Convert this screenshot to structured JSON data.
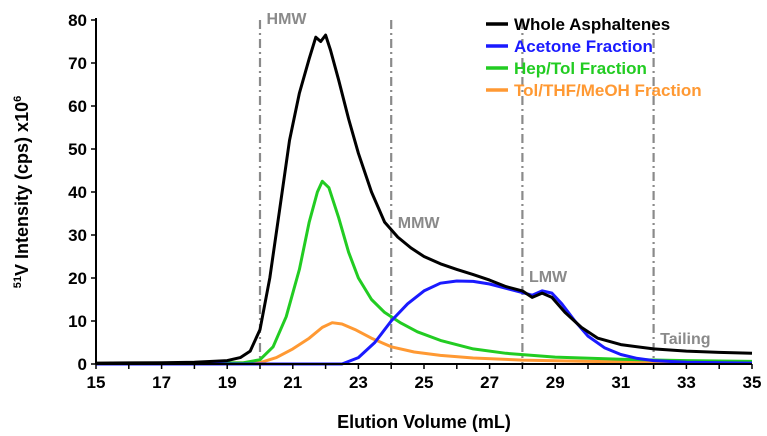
{
  "chart_data": {
    "type": "line",
    "xlabel": "Elution Volume (mL)",
    "ylabel_parts": {
      "sup": "51",
      "rest": "V Intensity (cps) x10",
      "exp": "6"
    },
    "xlim": [
      15,
      35
    ],
    "ylim": [
      0,
      80
    ],
    "xticks": [
      15,
      17,
      19,
      21,
      23,
      25,
      27,
      29,
      31,
      33,
      35
    ],
    "yticks": [
      0,
      10,
      20,
      30,
      40,
      50,
      60,
      70,
      80
    ],
    "grid": false,
    "legend_position": "top-right",
    "region_boundaries": [
      20,
      24,
      28,
      32
    ],
    "region_labels": [
      {
        "text": "HMW",
        "x": 20.2,
        "y": 80.5
      },
      {
        "text": "MMW",
        "x": 24.2,
        "y": 33
      },
      {
        "text": "LMW",
        "x": 28.2,
        "y": 20.5
      },
      {
        "text": "Tailing",
        "x": 32.2,
        "y": 6
      }
    ],
    "series": [
      {
        "name": "Whole Asphaltenes",
        "color": "#000000",
        "points": [
          [
            15,
            0.2
          ],
          [
            17,
            0.3
          ],
          [
            18,
            0.4
          ],
          [
            19,
            0.8
          ],
          [
            19.4,
            1.5
          ],
          [
            19.7,
            3
          ],
          [
            20,
            8
          ],
          [
            20.3,
            20
          ],
          [
            20.6,
            36
          ],
          [
            20.9,
            52
          ],
          [
            21.2,
            63
          ],
          [
            21.5,
            71
          ],
          [
            21.7,
            76
          ],
          [
            21.85,
            75
          ],
          [
            22,
            76.5
          ],
          [
            22.15,
            73
          ],
          [
            22.4,
            66
          ],
          [
            22.7,
            57
          ],
          [
            23,
            49
          ],
          [
            23.4,
            40
          ],
          [
            23.8,
            33
          ],
          [
            24.2,
            29.5
          ],
          [
            24.6,
            27
          ],
          [
            25,
            25
          ],
          [
            25.5,
            23.3
          ],
          [
            26,
            22
          ],
          [
            26.5,
            20.8
          ],
          [
            27,
            19.5
          ],
          [
            27.5,
            18
          ],
          [
            28,
            17
          ],
          [
            28.3,
            15.5
          ],
          [
            28.6,
            16.5
          ],
          [
            28.9,
            15.5
          ],
          [
            29.3,
            12
          ],
          [
            29.8,
            8.5
          ],
          [
            30.3,
            6
          ],
          [
            31,
            4.5
          ],
          [
            32,
            3.5
          ],
          [
            33,
            3
          ],
          [
            34,
            2.7
          ],
          [
            35,
            2.5
          ]
        ]
      },
      {
        "name": "Acetone Fraction",
        "color": "#1a1aff",
        "points": [
          [
            15,
            0
          ],
          [
            22.5,
            0
          ],
          [
            23,
            1.5
          ],
          [
            23.5,
            5
          ],
          [
            24,
            10
          ],
          [
            24.5,
            14
          ],
          [
            25,
            17
          ],
          [
            25.5,
            18.8
          ],
          [
            26,
            19.3
          ],
          [
            26.5,
            19.2
          ],
          [
            27,
            18.6
          ],
          [
            27.5,
            17.6
          ],
          [
            28,
            16.6
          ],
          [
            28.3,
            16
          ],
          [
            28.6,
            17
          ],
          [
            28.9,
            16.5
          ],
          [
            29.2,
            14
          ],
          [
            29.6,
            10
          ],
          [
            30,
            6.5
          ],
          [
            30.5,
            3.8
          ],
          [
            31,
            2.2
          ],
          [
            31.5,
            1.3
          ],
          [
            32,
            0.8
          ],
          [
            33,
            0.4
          ],
          [
            35,
            0.2
          ]
        ]
      },
      {
        "name": "Hep/Tol Fraction",
        "color": "#22cc22",
        "points": [
          [
            15,
            0.1
          ],
          [
            19.5,
            0.3
          ],
          [
            20,
            1
          ],
          [
            20.4,
            4
          ],
          [
            20.8,
            11
          ],
          [
            21.2,
            22
          ],
          [
            21.5,
            33
          ],
          [
            21.75,
            40
          ],
          [
            21.9,
            42.5
          ],
          [
            22.1,
            41
          ],
          [
            22.4,
            34
          ],
          [
            22.7,
            26
          ],
          [
            23,
            20
          ],
          [
            23.4,
            15
          ],
          [
            23.8,
            12
          ],
          [
            24.3,
            9.5
          ],
          [
            24.8,
            7.5
          ],
          [
            25.5,
            5.5
          ],
          [
            26.5,
            3.5
          ],
          [
            27.5,
            2.5
          ],
          [
            29,
            1.6
          ],
          [
            31,
            1.1
          ],
          [
            33,
            0.8
          ],
          [
            35,
            0.6
          ]
        ]
      },
      {
        "name": "Tol/THF/MeOH Fraction",
        "color": "#ff9933",
        "points": [
          [
            15,
            0
          ],
          [
            20,
            0.3
          ],
          [
            20.5,
            1.5
          ],
          [
            21,
            3.5
          ],
          [
            21.5,
            6
          ],
          [
            21.9,
            8.5
          ],
          [
            22.2,
            9.6
          ],
          [
            22.5,
            9.3
          ],
          [
            22.9,
            8
          ],
          [
            23.4,
            6
          ],
          [
            24,
            4
          ],
          [
            24.7,
            2.8
          ],
          [
            25.5,
            2
          ],
          [
            26.5,
            1.4
          ],
          [
            28,
            0.9
          ],
          [
            30,
            0.6
          ],
          [
            32,
            0.4
          ],
          [
            35,
            0.3
          ]
        ]
      }
    ]
  }
}
